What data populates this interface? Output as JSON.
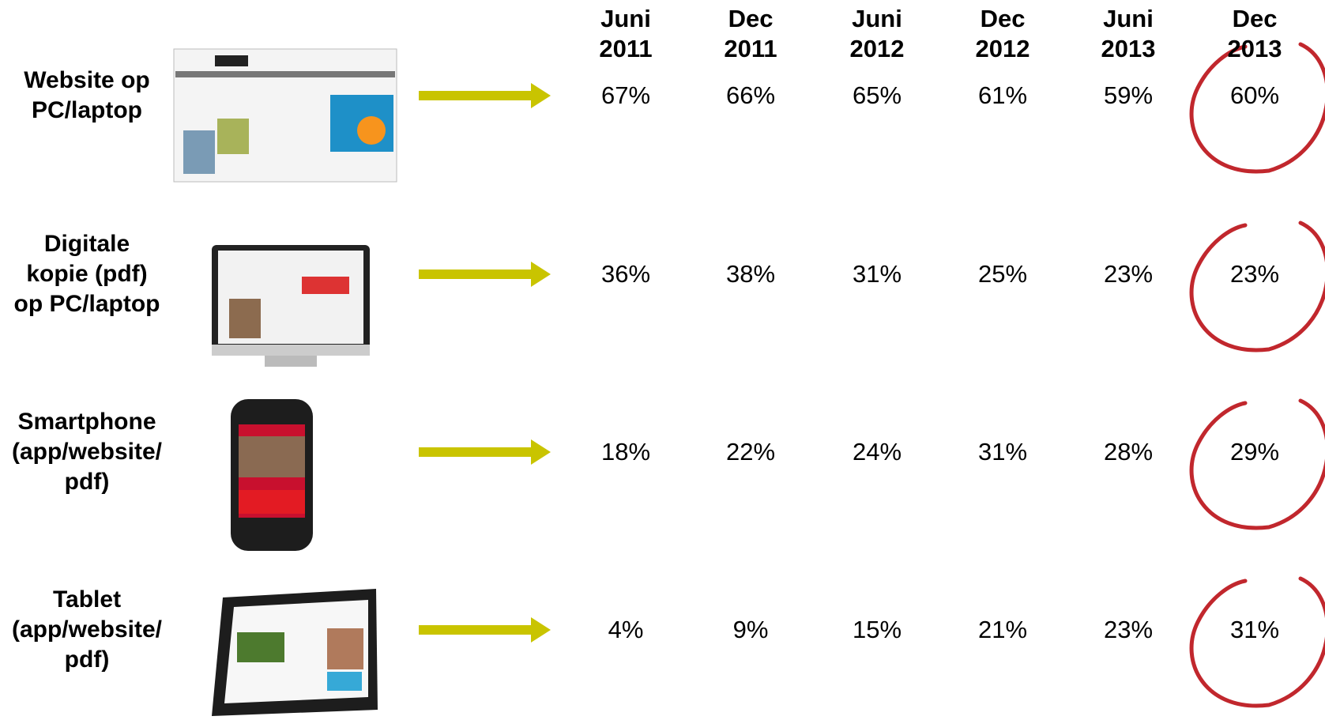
{
  "table": {
    "columns": [
      [
        "Juni",
        "2011"
      ],
      [
        "Dec",
        "2011"
      ],
      [
        "Juni",
        "2012"
      ],
      [
        "Dec",
        "2012"
      ],
      [
        "Juni",
        "2013"
      ],
      [
        "Dec",
        "2013"
      ]
    ],
    "rows": [
      {
        "label": [
          "Website op",
          "PC/laptop"
        ],
        "values": [
          "67%",
          "66%",
          "65%",
          "61%",
          "59%",
          "60%"
        ]
      },
      {
        "label": [
          "Digitale",
          "kopie (pdf)",
          "op PC/laptop"
        ],
        "values": [
          "36%",
          "38%",
          "31%",
          "25%",
          "23%",
          "23%"
        ]
      },
      {
        "label": [
          "Smartphone",
          "(app/website/",
          "pdf)"
        ],
        "values": [
          "18%",
          "22%",
          "24%",
          "31%",
          "28%",
          "29%"
        ]
      },
      {
        "label": [
          "Tablet",
          "(app/website/",
          "pdf)"
        ],
        "values": [
          "4%",
          "9%",
          "15%",
          "21%",
          "23%",
          "31%"
        ]
      }
    ]
  }
}
